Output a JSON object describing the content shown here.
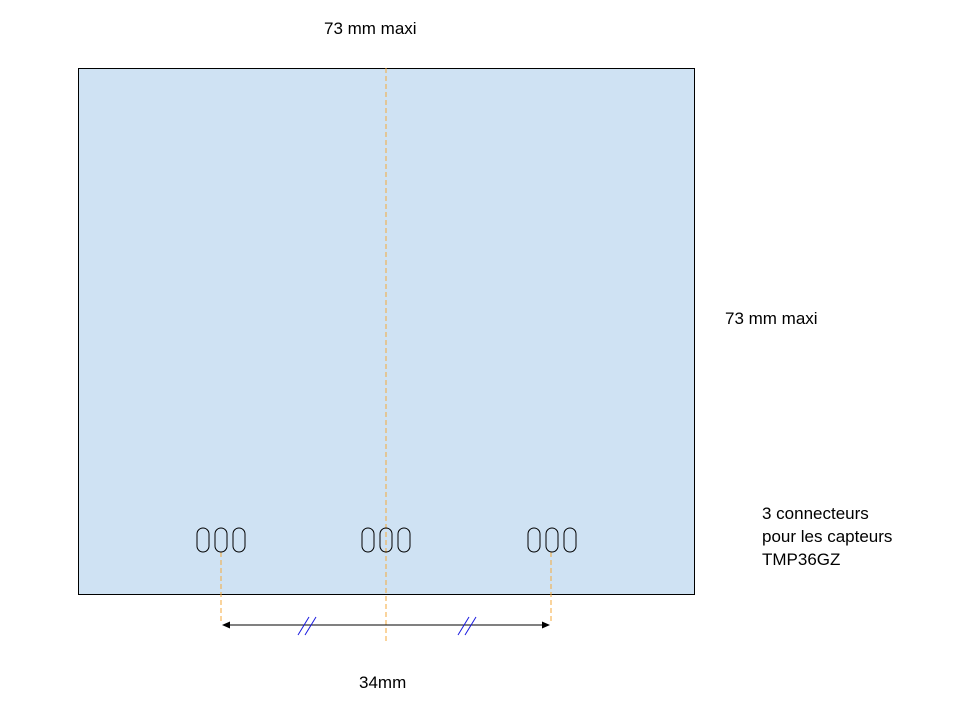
{
  "labels": {
    "top_width": "73 mm maxi",
    "side_height": "73 mm maxi",
    "spacing": "34mm",
    "connector_note": [
      "3 connecteurs",
      "pour les capteurs",
      "TMP36GZ"
    ]
  },
  "colors": {
    "board_fill": "#cfe2f3",
    "board_stroke": "#000000",
    "axis_line": "#f6a93b",
    "arrow": "#000000",
    "equal_marks": "#1a1ae0"
  },
  "connectors": [
    {
      "name": "connector-left",
      "pins": 3
    },
    {
      "name": "connector-center",
      "pins": 3
    },
    {
      "name": "connector-right",
      "pins": 3
    }
  ]
}
